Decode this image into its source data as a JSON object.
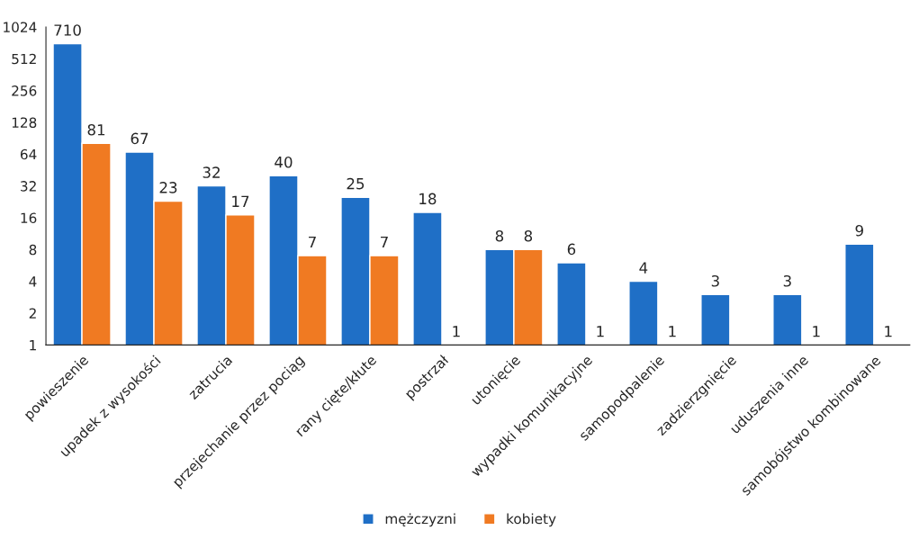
{
  "chart_data": {
    "type": "bar",
    "categories": [
      "powieszenie",
      "upadek z wysokości",
      "zatrucia",
      "przejechanie przez pociąg",
      "rany cięte/kłute",
      "postrzał",
      "utonięcie",
      "wypadki komunikacyjne",
      "samopodpalenie",
      "zadzierzgnięcie",
      "uduszenia inne",
      "samobójstwo kombinowane"
    ],
    "series": [
      {
        "name": "mężczyzni",
        "color": "#1f6fc6",
        "values": [
          710,
          67,
          32,
          40,
          25,
          18,
          8,
          6,
          4,
          3,
          3,
          9
        ]
      },
      {
        "name": "kobiety",
        "color": "#f07a22",
        "values": [
          81,
          23,
          17,
          7,
          7,
          1,
          8,
          1,
          1,
          null,
          1,
          1
        ]
      }
    ],
    "log": true,
    "ylim": [
      1,
      1024
    ],
    "yticks": [
      1,
      2,
      4,
      8,
      16,
      32,
      64,
      128,
      256,
      512,
      1024
    ],
    "data_labels": true,
    "grid": false,
    "legend": "bottom"
  }
}
